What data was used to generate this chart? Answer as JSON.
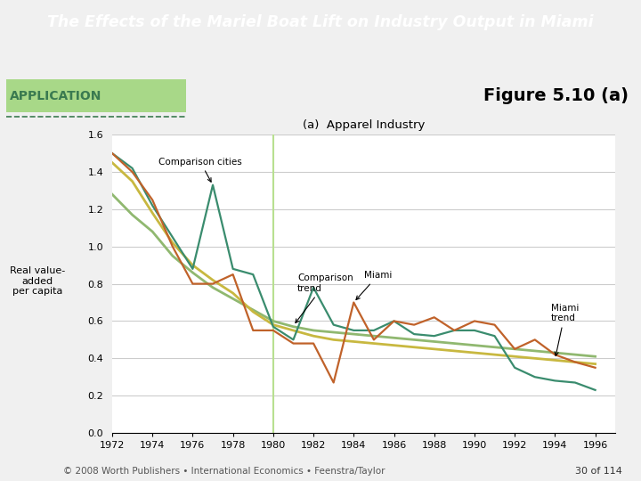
{
  "title": "The Effects of the Mariel Boat Lift on Industry Output in Miami",
  "subtitle": "(a)  Apparel Industry",
  "figure_label": "Figure 5.10 (a)",
  "application_label": "APPLICATION",
  "ylabel": "Real value-\nadded\nper capita",
  "footer": "© 2008 Worth Publishers • International Economics • Feenstra/Taylor",
  "footer_right": "30 of 114",
  "years": [
    1972,
    1973,
    1974,
    1975,
    1976,
    1977,
    1978,
    1979,
    1980,
    1981,
    1982,
    1983,
    1984,
    1985,
    1986,
    1987,
    1988,
    1989,
    1990,
    1991,
    1992,
    1993,
    1994,
    1995,
    1996
  ],
  "miami": [
    1.5,
    1.4,
    1.25,
    1.0,
    0.8,
    0.8,
    0.85,
    0.55,
    0.55,
    0.48,
    0.48,
    0.27,
    0.7,
    0.5,
    0.6,
    0.58,
    0.62,
    0.55,
    0.6,
    0.58,
    0.45,
    0.5,
    0.42,
    0.38,
    0.35
  ],
  "miami_trend": [
    1.45,
    1.35,
    1.18,
    1.02,
    0.9,
    0.82,
    0.75,
    0.65,
    0.58,
    0.55,
    0.52,
    0.5,
    0.49,
    0.48,
    0.47,
    0.46,
    0.45,
    0.44,
    0.43,
    0.42,
    0.41,
    0.4,
    0.39,
    0.38,
    0.37
  ],
  "comparison_cities": [
    1.5,
    1.42,
    1.22,
    1.05,
    0.88,
    1.33,
    0.88,
    0.85,
    0.57,
    0.5,
    0.78,
    0.58,
    0.55,
    0.55,
    0.6,
    0.53,
    0.52,
    0.55,
    0.55,
    0.52,
    0.35,
    0.3,
    0.28,
    0.27,
    0.23
  ],
  "comparison_trend": [
    1.28,
    1.17,
    1.08,
    0.95,
    0.86,
    0.78,
    0.72,
    0.66,
    0.6,
    0.57,
    0.55,
    0.54,
    0.53,
    0.52,
    0.51,
    0.5,
    0.49,
    0.48,
    0.47,
    0.46,
    0.45,
    0.44,
    0.43,
    0.42,
    0.41
  ],
  "miami_color": "#c0622a",
  "miami_trend_color": "#c8b840",
  "comparison_cities_color": "#3a8c6e",
  "comparison_trend_color": "#90b870",
  "vline_color": "#b8e090",
  "ylim": [
    0.0,
    1.6
  ],
  "yticks": [
    0.0,
    0.2,
    0.4,
    0.6,
    0.8,
    1.0,
    1.2,
    1.4,
    1.6
  ],
  "xticks": [
    1972,
    1974,
    1976,
    1978,
    1980,
    1982,
    1984,
    1986,
    1988,
    1990,
    1992,
    1994,
    1996
  ],
  "header_bg": "#3a6ea5",
  "header_text_color": "#ffffff",
  "app_bg": "#a8d888",
  "app_text_color": "#3a7a50",
  "bg_color": "#f0f0f0"
}
